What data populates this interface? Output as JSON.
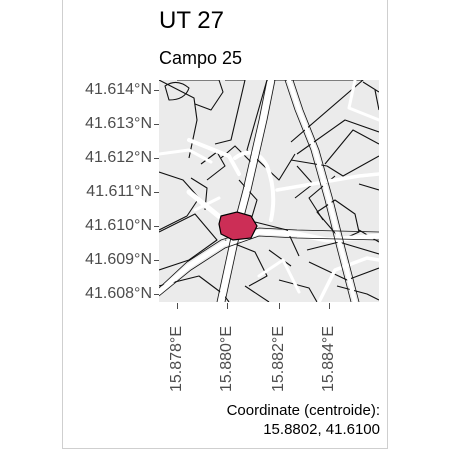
{
  "header": {
    "title": "UT 27",
    "subtitle": "Campo 25"
  },
  "axes": {
    "latitude_labels": [
      "41.614°N",
      "41.613°N",
      "41.612°N",
      "41.611°N",
      "41.610°N",
      "41.609°N",
      "41.608°N"
    ],
    "longitude_labels": [
      "15.878°E",
      "15.880°E",
      "15.882°E",
      "15.884°E"
    ]
  },
  "map": {
    "background_color": "#ebebeb",
    "road_color": "#ffffff",
    "outline_color": "#111111",
    "highlight_color": "#cc2e56",
    "highlight_outline_color": "#000000"
  },
  "caption": {
    "label": "Coordinate (centroide):",
    "value": "15.8802, 41.6100"
  }
}
